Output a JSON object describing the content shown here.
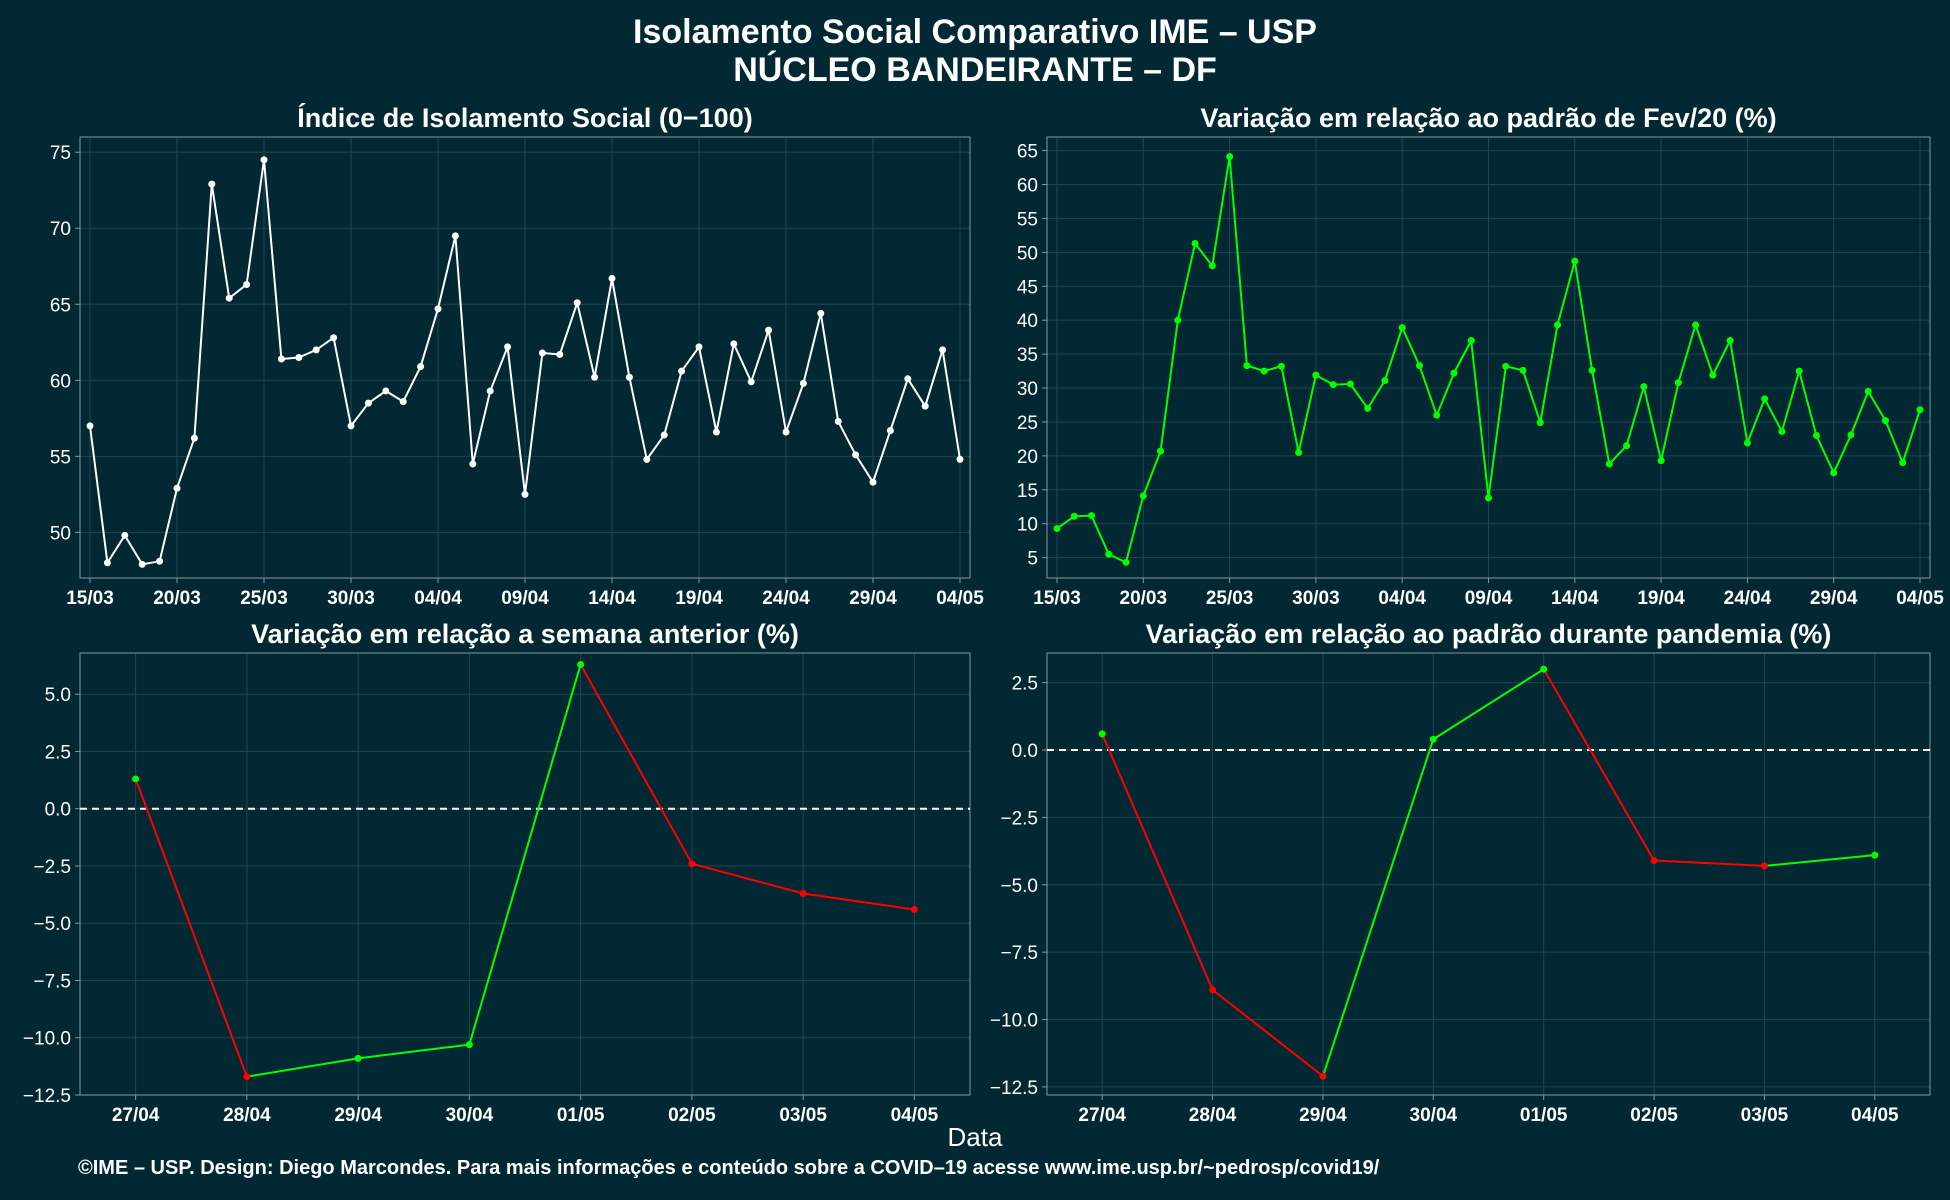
{
  "title_line1": "Isolamento Social Comparativo IME – USP",
  "title_line2": "NÚCLEO BANDEIRANTE – DF",
  "xlabel": "Data",
  "caption": "©IME – USP. Design: Diego Marcondes. Para mais informações e conteúdo sobre a COVID–19 acesse www.ime.usp.br/~pedrosp/covid19/",
  "colors": {
    "background": "#022833",
    "white": "#ffffff",
    "green": "#00ff00",
    "red": "#ff0000",
    "grid": "#1f4650",
    "frame": "#7f9aa1"
  },
  "chart_data": [
    {
      "type": "line",
      "title": "Índice de Isolamento Social (0−100)",
      "x_ticks": [
        "15/03",
        "20/03",
        "25/03",
        "30/03",
        "04/04",
        "09/04",
        "14/04",
        "19/04",
        "24/04",
        "29/04",
        "04/05"
      ],
      "y_ticks": [
        50,
        55,
        60,
        65,
        70,
        75
      ],
      "ylim": [
        47,
        76
      ],
      "grid": true,
      "color": "white",
      "values": [
        57.0,
        48.0,
        49.8,
        47.9,
        48.1,
        52.9,
        56.2,
        72.9,
        65.4,
        66.3,
        74.5,
        61.4,
        61.5,
        62.0,
        62.8,
        57.0,
        58.5,
        59.3,
        58.6,
        60.9,
        64.7,
        69.5,
        54.5,
        59.3,
        62.2,
        52.5,
        61.8,
        61.7,
        65.1,
        60.2,
        66.7,
        60.2,
        54.8,
        56.4,
        60.6,
        62.2,
        56.6,
        62.4,
        59.9,
        63.3,
        56.6,
        59.8,
        64.4,
        57.3,
        55.1,
        53.3,
        56.7,
        60.1,
        58.3,
        62.0,
        54.8
      ]
    },
    {
      "type": "line",
      "title": "Variação em relação ao padrão de Fev/20 (%)",
      "x_ticks": [
        "15/03",
        "20/03",
        "25/03",
        "30/03",
        "04/04",
        "09/04",
        "14/04",
        "19/04",
        "24/04",
        "29/04",
        "04/05"
      ],
      "y_ticks": [
        5,
        10,
        15,
        20,
        25,
        30,
        35,
        40,
        45,
        50,
        55,
        60,
        65
      ],
      "ylim": [
        2,
        67
      ],
      "grid": true,
      "color": "green",
      "values": [
        9.3,
        11.1,
        11.2,
        5.5,
        4.3,
        14.1,
        20.7,
        40.0,
        51.3,
        48.0,
        64.1,
        33.3,
        32.5,
        33.2,
        20.5,
        31.9,
        30.5,
        30.6,
        27.0,
        31.1,
        38.9,
        33.3,
        26.0,
        32.2,
        37.0,
        13.8,
        33.2,
        32.6,
        24.9,
        39.3,
        48.7,
        32.6,
        18.8,
        21.5,
        30.2,
        19.3,
        30.8,
        39.3,
        31.9,
        37.0,
        21.9,
        28.4,
        23.6,
        32.5,
        23.0,
        17.5,
        23.1,
        29.5,
        25.2,
        19.0,
        26.8
      ]
    },
    {
      "type": "line",
      "title": "Variação em relação a semana anterior (%)",
      "categories": [
        "27/04",
        "28/04",
        "29/04",
        "30/04",
        "01/05",
        "02/05",
        "03/05",
        "04/05"
      ],
      "y_ticks": [
        -12.5,
        -10.0,
        -7.5,
        -5.0,
        -2.5,
        0.0,
        2.5,
        5.0
      ],
      "ylim": [
        -12.5,
        6.8
      ],
      "grid": true,
      "reference_line": 0,
      "colors_rule": "green when increasing, red when decreasing",
      "values": [
        1.3,
        -11.7,
        -10.9,
        -10.3,
        6.3,
        -2.4,
        -3.7,
        -4.4
      ]
    },
    {
      "type": "line",
      "title": "Variação em relação ao padrão durante pandemia (%)",
      "categories": [
        "27/04",
        "28/04",
        "29/04",
        "30/04",
        "01/05",
        "02/05",
        "03/05",
        "04/05"
      ],
      "y_ticks": [
        -12.5,
        -10.0,
        -7.5,
        -5.0,
        -2.5,
        0.0,
        2.5
      ],
      "ylim": [
        -12.8,
        3.6
      ],
      "grid": true,
      "reference_line": 0,
      "colors_rule": "green when increasing, red when decreasing",
      "values": [
        0.6,
        -8.9,
        -12.1,
        0.4,
        3.0,
        -4.1,
        -4.3,
        -3.9
      ]
    }
  ]
}
